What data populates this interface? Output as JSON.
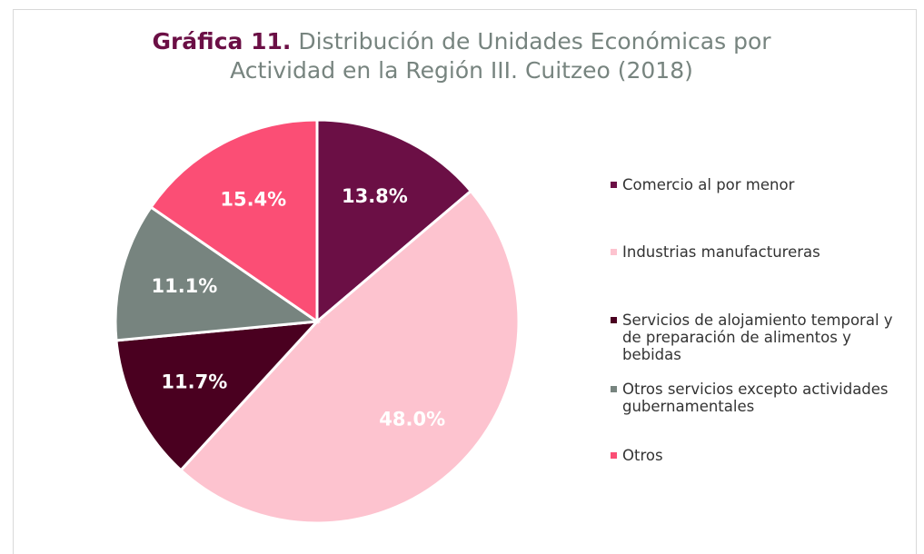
{
  "chart_data": {
    "type": "pie",
    "title_label": "Gráfica 11.",
    "title": "Distribución de Unidades Económicas por Actividad en la Región III. Cuitzeo (2018)",
    "categories": [
      "Comercio al por menor",
      "Industrias manufactureras",
      "Servicios de alojamiento temporal y de preparación de alimentos y bebidas",
      "Otros servicios excepto actividades gubernamentales",
      "Otros"
    ],
    "values": [
      13.8,
      48.0,
      11.7,
      11.1,
      15.4
    ],
    "value_labels": [
      "13.8%",
      "48.0%",
      "11.7%",
      "11.1%",
      "15.4%"
    ],
    "colors": [
      "#6b0f45",
      "#fdc3cf",
      "#4a0020",
      "#77847f",
      "#fb4e75"
    ],
    "legend": "right"
  }
}
